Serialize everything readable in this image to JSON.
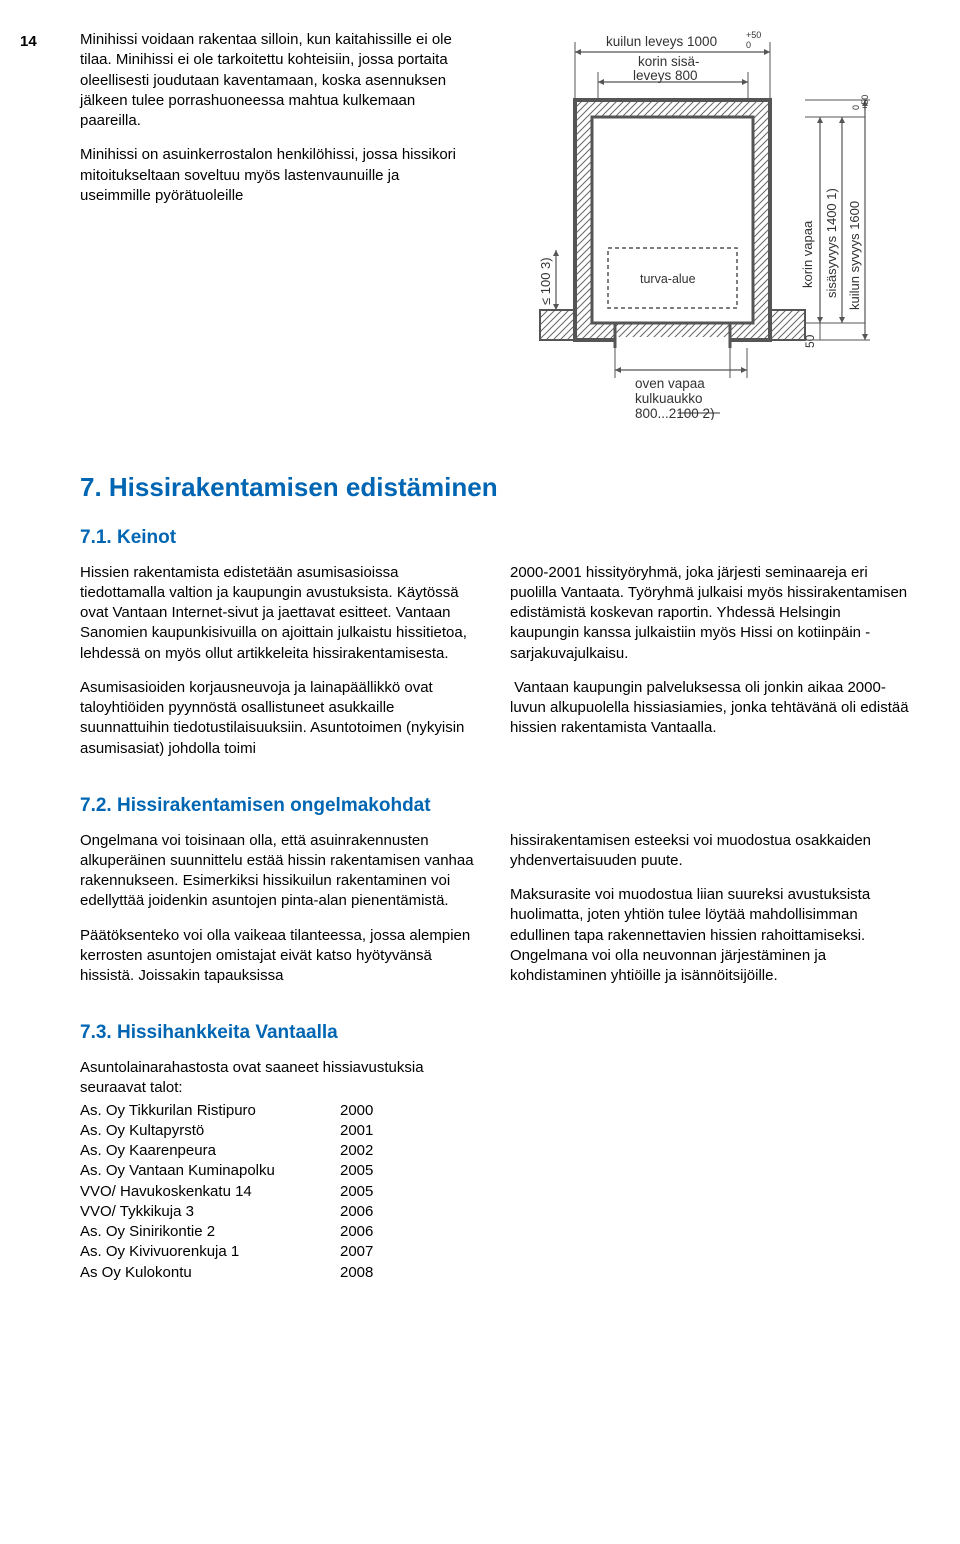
{
  "pageNumber": "14",
  "top": {
    "p1": "Minihissi voidaan rakentaa silloin, kun kaitahissille ei ole tilaa. Minihissi ei ole tarkoitettu kohteisiin, jossa portaita oleellisesti joudutaan kaventamaan, koska asennuksen jälkeen tulee porrashuoneessa mahtua kulkemaan paareilla.",
    "p2": "Minihissi on asuinkerrostalon henkilöhissi, jossa hissikori mitoitukseltaan soveltuu myös lastenvaunuille ja useimmille pyörätuoleille"
  },
  "diagram": {
    "lbl_kuilun_leveys": "kuilun leveys 1000",
    "lbl_kuilun_leveys_sup": "+50",
    "lbl_kuilun_leveys_sup2": "0",
    "lbl_korin_sisa": "korin sisä-",
    "lbl_leveys800": "leveys 800",
    "lbl_turva_alue": "turva-alue",
    "lbl_100_3": "≤ 100 3)",
    "lbl_korin_vapaa": "korin vapaa",
    "lbl_sisasyvyys": "sisäsyvyys 1400 1)",
    "lbl_kuilun_syvyys": "kuilun syvyys 1600",
    "lbl_kuilun_syvyys_sup": "+50",
    "lbl_kuilun_syvyys_sup2": "0",
    "lbl_50": "50",
    "lbl_oven_vapaa": "oven vapaa",
    "lbl_kulkuaukko": "kulkuaukko",
    "lbl_800_2100": "800...2100 2)",
    "style": {
      "stroke": "#555555",
      "stroke_width": 2,
      "hatch": "#666666",
      "font_family": "Arial",
      "font_size_label": 13,
      "font_size_small": 9
    }
  },
  "s7": {
    "title": "7. Hissirakentamisen edistäminen",
    "s71": {
      "title": "7.1. Keinot",
      "left": {
        "p1": "Hissien rakentamista edistetään asumisasioissa tiedottamalla valtion ja kaupungin avustuksista. Käytössä ovat Vantaan Internet-sivut ja jaettavat esitteet. Vantaan Sanomien kaupunkisivuilla on ajoittain julkaistu hissitietoa, lehdessä on myös ollut artikkeleita hissirakentamisesta.",
        "p2": "Asumisasioiden korjausneuvoja ja lainapäällikkö ovat taloyhtiöiden pyynnöstä osallistuneet asukkaille suunnattuihin tiedotustilaisuuksiin. Asuntotoimen (nykyisin asumisasiat) johdolla toimi"
      },
      "right": {
        "p1": "2000-2001 hissityöryhmä, joka järjesti seminaareja eri puolilla Vantaata. Työryhmä julkaisi myös hissirakentamisen edistämistä koskevan raportin. Yhdessä Helsingin kaupungin kanssa julkaistiin myös Hissi on kotiinpäin -sarjakuvajulkaisu.",
        "p2": " Vantaan kaupungin palveluksessa oli jonkin aikaa 2000-luvun alkupuolella hissiasiamies, jonka tehtävänä oli edistää hissien rakentamista Vantaalla."
      }
    },
    "s72": {
      "title": "7.2. Hissirakentamisen ongelmakohdat",
      "left": {
        "p1": "Ongelmana voi toisinaan olla, että asuinrakennusten alkuperäinen suunnittelu estää hissin rakentamisen vanhaa rakennukseen. Esimerkiksi hissikuilun rakentaminen voi edellyttää joidenkin asuntojen pinta-alan pienentämistä.",
        "p2": "Päätöksenteko voi olla vaikeaa tilanteessa, jossa alempien kerrosten asuntojen omistajat eivät katso hyötyvänsä hissistä. Joissakin tapauksissa"
      },
      "right": {
        "p1": "hissirakentamisen esteeksi voi muodostua osakkaiden yhdenvertaisuuden puute.",
        "p2": "Maksurasite voi muodostua liian suureksi avustuksista huolimatta, joten yhtiön tulee löytää mahdollisimman edullinen tapa rakennettavien hissien rahoittamiseksi. Ongelmana voi olla neuvonnan järjestäminen ja kohdistaminen yhtiöille ja isännöitsijöille."
      }
    },
    "s73": {
      "title": "7.3. Hissihankkeita Vantaalla",
      "intro": "Asuntolainarahastosta ovat saaneet hissiavustuksia seuraavat talot:",
      "rows": [
        {
          "name": "As. Oy Tikkurilan Ristipuro",
          "year": "2000"
        },
        {
          "name": "As. Oy Kultapyrstö",
          "year": "2001"
        },
        {
          "name": "As. Oy  Kaarenpeura",
          "year": "2002"
        },
        {
          "name": "As. Oy Vantaan Kuminapolku",
          "year": "2005"
        },
        {
          "name": "VVO/ Havukoskenkatu 14",
          "year": "2005"
        },
        {
          "name": "VVO/ Tykkikuja 3",
          "year": "2006"
        },
        {
          "name": "As. Oy Sinirikontie 2",
          "year": "2006"
        },
        {
          "name": "As. Oy Kivivuorenkuja 1",
          "year": "2007"
        },
        {
          "name": "As Oy Kulokontu",
          "year": "2008"
        }
      ]
    }
  }
}
